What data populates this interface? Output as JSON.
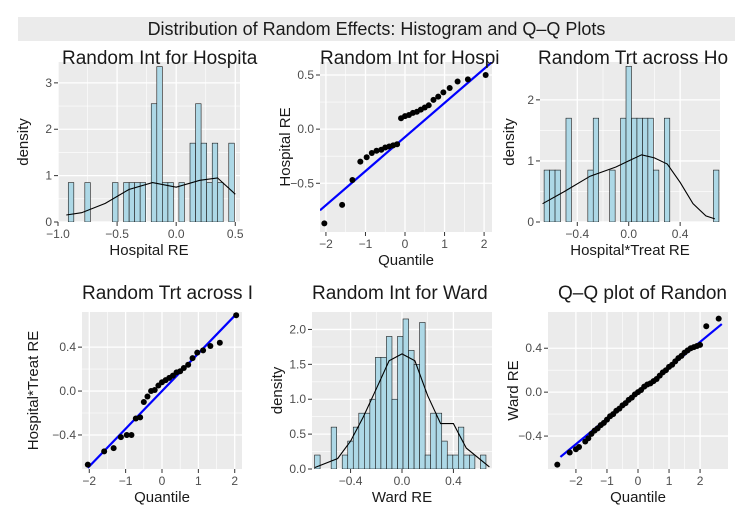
{
  "figure": {
    "title": "Distribution of Random Effects: Histogram and Q–Q Plots"
  },
  "colors": {
    "bar_fill": "#add8e6",
    "bar_stroke": "#1a1a1a",
    "panel_bg": "#ebebeb",
    "grid": "#ffffff",
    "line": "#0000ff",
    "point": "#000000",
    "density": "#000000"
  },
  "chart_data": [
    {
      "type": "bar",
      "subtype": "histogram_with_density",
      "title": "Random Int for Hospita",
      "xlabel": "Hospital RE",
      "ylabel": "density",
      "xlim": [
        -1.0,
        0.54
      ],
      "ylim": [
        0,
        3.45
      ],
      "xticks": [
        -1.0,
        -0.5,
        0.0,
        0.5
      ],
      "xtick_labels": [
        "−1.0",
        "−0.5",
        "0.0",
        "0.5"
      ],
      "yticks": [
        0,
        1,
        2,
        3
      ],
      "ytick_labels": [
        "0",
        "1",
        "2",
        "3"
      ],
      "bin_width": 0.0468,
      "bin_start": [
        -0.913,
        -0.773,
        -0.539,
        -0.445,
        -0.398,
        -0.351,
        -0.305,
        -0.211,
        -0.164,
        -0.117,
        -0.07,
        0.023,
        0.117,
        0.164,
        0.211,
        0.258,
        0.305,
        0.351,
        0.445
      ],
      "bin_values": [
        0.85,
        0.85,
        0.85,
        0.85,
        0.85,
        0.85,
        0.85,
        2.55,
        3.35,
        0.85,
        0.85,
        0.85,
        1.7,
        2.55,
        1.7,
        0.85,
        1.7,
        0.85,
        1.7
      ],
      "density_x": [
        -0.93,
        -0.8,
        -0.6,
        -0.4,
        -0.2,
        0.0,
        0.2,
        0.35,
        0.5
      ],
      "density_y": [
        0.15,
        0.2,
        0.4,
        0.7,
        0.85,
        0.75,
        0.9,
        0.95,
        0.6
      ]
    },
    {
      "type": "scatter",
      "subtype": "qq",
      "title": "Random Int for Hospi",
      "xlabel": "Quantile",
      "ylabel": "Hospital RE",
      "xlim": [
        -2.15,
        2.2
      ],
      "ylim": [
        -0.95,
        0.62
      ],
      "xticks": [
        -2,
        -1,
        0,
        1,
        2
      ],
      "xtick_labels": [
        "−2",
        "−1",
        "0",
        "1",
        "2"
      ],
      "yticks": [
        -0.5,
        0.0,
        0.5
      ],
      "ytick_labels": [
        "−0.5",
        "0.0",
        "0.5"
      ],
      "x": [
        -2.04,
        -1.59,
        -1.33,
        -1.13,
        -0.97,
        -0.84,
        -0.72,
        -0.6,
        -0.5,
        -0.4,
        -0.3,
        -0.2,
        -0.1,
        0.0,
        0.1,
        0.2,
        0.3,
        0.4,
        0.5,
        0.6,
        0.72,
        0.84,
        0.97,
        1.13,
        1.33,
        1.59,
        2.04
      ],
      "y": [
        -0.87,
        -0.7,
        -0.47,
        -0.3,
        -0.26,
        -0.22,
        -0.2,
        -0.19,
        -0.17,
        -0.16,
        -0.15,
        -0.14,
        0.1,
        0.12,
        0.13,
        0.15,
        0.16,
        0.18,
        0.2,
        0.22,
        0.27,
        0.3,
        0.34,
        0.38,
        0.44,
        0.46,
        0.5
      ],
      "line": [
        [
          -2.15,
          -0.75
        ],
        [
          2.2,
          0.62
        ]
      ]
    },
    {
      "type": "bar",
      "subtype": "histogram_with_density",
      "title": "Random Trt across Ho",
      "xlabel": "Hospital*Treat RE",
      "ylabel": "density",
      "xlim": [
        -0.69,
        0.71
      ],
      "ylim": [
        0,
        2.62
      ],
      "xticks": [
        -0.4,
        0.0,
        0.4
      ],
      "xtick_labels": [
        "−0.4",
        "0.0",
        "0.4"
      ],
      "yticks": [
        0,
        1,
        2
      ],
      "ytick_labels": [
        "0",
        "1",
        "2"
      ],
      "bin_width": 0.0425,
      "bin_start": [
        -0.658,
        -0.615,
        -0.573,
        -0.488,
        -0.318,
        -0.276,
        -0.148,
        -0.063,
        -0.021,
        0.022,
        0.064,
        0.107,
        0.149,
        0.192,
        0.277,
        0.659
      ],
      "bin_values": [
        0.85,
        0.85,
        0.85,
        1.7,
        0.85,
        1.7,
        0.85,
        1.7,
        2.55,
        1.7,
        1.7,
        1.7,
        1.7,
        0.85,
        1.7,
        0.85
      ],
      "density_x": [
        -0.67,
        -0.5,
        -0.3,
        -0.1,
        0.0,
        0.1,
        0.2,
        0.3,
        0.4,
        0.5,
        0.6,
        0.67
      ],
      "density_y": [
        0.3,
        0.5,
        0.75,
        0.9,
        1.0,
        1.1,
        1.05,
        0.95,
        0.65,
        0.3,
        0.1,
        0.05
      ]
    },
    {
      "type": "scatter",
      "subtype": "qq",
      "title": "Random Trt across I",
      "xlabel": "Quantile",
      "ylabel": "Hospital*Treat RE",
      "xlim": [
        -2.2,
        2.2
      ],
      "ylim": [
        -0.71,
        0.72
      ],
      "xticks": [
        -2,
        -1,
        0,
        1,
        2
      ],
      "xtick_labels": [
        "−2",
        "−1",
        "0",
        "1",
        "2"
      ],
      "yticks": [
        -0.4,
        0.0,
        0.4
      ],
      "ytick_labels": [
        "−0.4",
        "0.0",
        "0.4"
      ],
      "x": [
        -2.04,
        -1.59,
        -1.33,
        -1.13,
        -0.97,
        -0.84,
        -0.72,
        -0.6,
        -0.5,
        -0.4,
        -0.3,
        -0.2,
        -0.1,
        0.0,
        0.1,
        0.2,
        0.3,
        0.4,
        0.5,
        0.6,
        0.72,
        0.84,
        0.97,
        1.13,
        1.33,
        1.59,
        2.04
      ],
      "y": [
        -0.67,
        -0.55,
        -0.52,
        -0.42,
        -0.4,
        -0.4,
        -0.25,
        -0.24,
        -0.1,
        -0.05,
        0.0,
        0.01,
        0.05,
        0.08,
        0.1,
        0.12,
        0.14,
        0.17,
        0.18,
        0.21,
        0.24,
        0.3,
        0.35,
        0.37,
        0.41,
        0.44,
        0.69
      ],
      "line": [
        [
          -2.04,
          -0.7
        ],
        [
          2.04,
          0.7
        ]
      ]
    },
    {
      "type": "bar",
      "subtype": "histogram_with_density",
      "title": "Random Int for Ward",
      "xlabel": "Ward RE",
      "ylabel": "density",
      "xlim": [
        -0.7,
        0.7
      ],
      "ylim": [
        0,
        2.25
      ],
      "xticks": [
        -0.4,
        0.0,
        0.4
      ],
      "xtick_labels": [
        "−0.4",
        "0.0",
        "0.4"
      ],
      "yticks": [
        0.0,
        0.5,
        1.0,
        1.5,
        2.0
      ],
      "ytick_labels": [
        "0.0",
        "0.5",
        "1.0",
        "1.5",
        "2.0"
      ],
      "bin_width": 0.043,
      "bin_start": [
        -0.68,
        -0.551,
        -0.465,
        -0.422,
        -0.379,
        -0.336,
        -0.293,
        -0.25,
        -0.207,
        -0.164,
        -0.121,
        -0.078,
        -0.035,
        0.008,
        0.051,
        0.094,
        0.137,
        0.18,
        0.223,
        0.266,
        0.309,
        0.352,
        0.395,
        0.438,
        0.481,
        0.524,
        0.61
      ],
      "bin_values": [
        0.2,
        0.6,
        0.2,
        0.4,
        0.6,
        0.8,
        0.8,
        1.0,
        1.6,
        1.6,
        1.9,
        1.0,
        1.9,
        2.15,
        1.7,
        1.5,
        2.1,
        0.2,
        0.8,
        0.8,
        0.4,
        0.2,
        0.2,
        0.6,
        0.2,
        0.2,
        0.2
      ],
      "density_x": [
        -0.68,
        -0.5,
        -0.4,
        -0.3,
        -0.2,
        -0.1,
        0.0,
        0.1,
        0.2,
        0.3,
        0.4,
        0.5,
        0.68
      ],
      "density_y": [
        0.02,
        0.15,
        0.4,
        0.75,
        1.15,
        1.55,
        1.65,
        1.55,
        1.05,
        0.65,
        0.65,
        0.3,
        0.03
      ]
    },
    {
      "type": "scatter",
      "subtype": "qq",
      "title": "Q–Q plot of Randon",
      "xlabel": "Quantile",
      "ylabel": "Ward RE",
      "xlim": [
        -2.9,
        2.9
      ],
      "ylim": [
        -0.7,
        0.73
      ],
      "xticks": [
        -2,
        -1,
        0,
        1,
        2
      ],
      "xtick_labels": [
        "−2",
        "−1",
        "0",
        "1",
        "2"
      ],
      "yticks": [
        -0.4,
        0.0,
        0.4
      ],
      "ytick_labels": [
        "−0.4",
        "0.0",
        "0.4"
      ],
      "x": [
        -2.6,
        -2.2,
        -2.0,
        -1.9,
        -1.7,
        -1.6,
        -1.5,
        -1.4,
        -1.3,
        -1.2,
        -1.1,
        -1.0,
        -0.9,
        -0.8,
        -0.7,
        -0.6,
        -0.5,
        -0.4,
        -0.3,
        -0.2,
        -0.1,
        0.0,
        0.1,
        0.2,
        0.3,
        0.4,
        0.5,
        0.6,
        0.7,
        0.8,
        0.9,
        1.0,
        1.1,
        1.2,
        1.3,
        1.4,
        1.5,
        1.6,
        1.7,
        1.8,
        1.9,
        2.0,
        2.2,
        2.6
      ],
      "y": [
        -0.66,
        -0.55,
        -0.52,
        -0.5,
        -0.45,
        -0.42,
        -0.38,
        -0.35,
        -0.33,
        -0.3,
        -0.28,
        -0.25,
        -0.22,
        -0.2,
        -0.17,
        -0.15,
        -0.12,
        -0.1,
        -0.07,
        -0.05,
        -0.02,
        0.0,
        0.02,
        0.05,
        0.07,
        0.08,
        0.1,
        0.12,
        0.15,
        0.18,
        0.2,
        0.23,
        0.25,
        0.28,
        0.31,
        0.33,
        0.36,
        0.38,
        0.4,
        0.41,
        0.42,
        0.43,
        0.6,
        0.67
      ],
      "line": [
        [
          -2.5,
          -0.59
        ],
        [
          2.7,
          0.62
        ]
      ]
    }
  ]
}
